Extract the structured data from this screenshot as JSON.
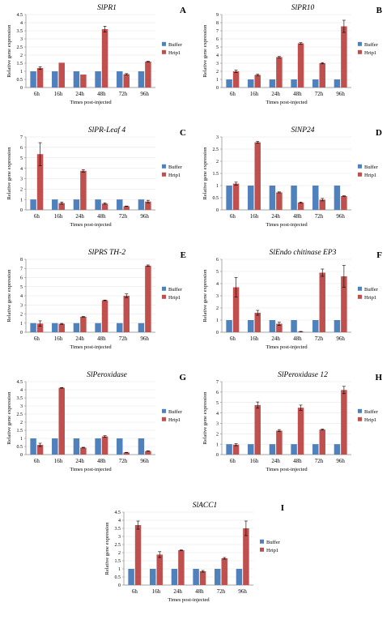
{
  "figure": {
    "colors": {
      "buffer": "#4F81BD",
      "hrip1": "#C0504D",
      "axis": "#868686",
      "grid": "#d9d9d9"
    }
  },
  "chart_data": [
    {
      "panel": "A",
      "title": "SlPR1",
      "type": "bar",
      "categories": [
        "6h",
        "16h",
        "24h",
        "48h",
        "72h",
        "96h"
      ],
      "series": [
        {
          "name": "Buffer",
          "values": [
            1,
            1,
            1,
            1,
            1,
            1
          ]
        },
        {
          "name": "Hrip1",
          "values": [
            1.2,
            1.53,
            0.8,
            3.6,
            0.82,
            1.6
          ],
          "errors": [
            0.08,
            0.0,
            0.0,
            0.18,
            0.04,
            0.02
          ]
        }
      ],
      "ylim": [
        0,
        4.5
      ],
      "yticks": [
        "0",
        "0.5",
        "1",
        "1.5",
        "2",
        "2.5",
        "3",
        "3.5",
        "4",
        "4.5"
      ],
      "ylabel": "Relative gene expression",
      "xlabel": "Times post-injected"
    },
    {
      "panel": "B",
      "title": "SlPR10",
      "type": "bar",
      "categories": [
        "6h",
        "16h",
        "24h",
        "48h",
        "72h",
        "96h"
      ],
      "series": [
        {
          "name": "Buffer",
          "values": [
            1,
            1,
            1,
            1,
            1,
            1
          ]
        },
        {
          "name": "Hrip1",
          "values": [
            2.0,
            1.55,
            3.75,
            5.45,
            3.0,
            7.55
          ],
          "errors": [
            0.15,
            0.1,
            0.08,
            0.08,
            0.08,
            0.75
          ]
        }
      ],
      "ylim": [
        0,
        9
      ],
      "yticks": [
        "0",
        "1",
        "2",
        "3",
        "4",
        "5",
        "6",
        "7",
        "8",
        "9"
      ],
      "ylabel": "Relative gene expression",
      "xlabel": "Times post-injected"
    },
    {
      "panel": "C",
      "title": "SlPR-Leaf 4",
      "type": "bar",
      "categories": [
        "6h",
        "16h",
        "24h",
        "48h",
        "72h",
        "96h"
      ],
      "series": [
        {
          "name": "Buffer",
          "values": [
            1,
            1,
            1,
            1,
            1,
            1
          ]
        },
        {
          "name": "Hrip1",
          "values": [
            5.35,
            0.65,
            3.75,
            0.6,
            0.35,
            0.8
          ],
          "errors": [
            1.1,
            0.1,
            0.12,
            0.06,
            0.02,
            0.12
          ]
        }
      ],
      "ylim": [
        0,
        7
      ],
      "yticks": [
        "0",
        "1",
        "2",
        "3",
        "4",
        "5",
        "6",
        "7"
      ],
      "ylabel": "Relative gene expression",
      "xlabel": "Times post-injected"
    },
    {
      "panel": "D",
      "title": "SlNP24",
      "type": "bar",
      "categories": [
        "6h",
        "16h",
        "24h",
        "48h",
        "72h",
        "96h"
      ],
      "series": [
        {
          "name": "Buffer",
          "values": [
            1,
            1,
            1,
            1,
            1,
            1
          ]
        },
        {
          "name": "Hrip1",
          "values": [
            1.08,
            2.78,
            0.72,
            0.3,
            0.42,
            0.57
          ],
          "errors": [
            0.06,
            0.04,
            0.02,
            0.02,
            0.05,
            0.01
          ]
        }
      ],
      "ylim": [
        0,
        3
      ],
      "yticks": [
        "0",
        "0.5",
        "1",
        "1.5",
        "2",
        "2.5",
        "3"
      ],
      "ylabel": "Relative gene expression",
      "xlabel": "Times post-injected"
    },
    {
      "panel": "E",
      "title": "SlPRS TH-2",
      "type": "bar",
      "categories": [
        "6h",
        "16h",
        "24h",
        "48h",
        "72h",
        "96h"
      ],
      "series": [
        {
          "name": "Buffer",
          "values": [
            1,
            1,
            1,
            1,
            1,
            1
          ]
        },
        {
          "name": "Hrip1",
          "values": [
            0.95,
            0.92,
            1.7,
            3.5,
            4.0,
            7.3
          ],
          "errors": [
            0.3,
            0.05,
            0.03,
            0.03,
            0.2,
            0.08
          ]
        }
      ],
      "ylim": [
        0,
        8
      ],
      "yticks": [
        "0",
        "1",
        "2",
        "3",
        "4",
        "5",
        "6",
        "7",
        "8"
      ],
      "ylabel": "Relative gene expression",
      "xlabel": "Times post-injected"
    },
    {
      "panel": "F",
      "title": "SlEndo chitinase EP3",
      "type": "bar",
      "categories": [
        "6h",
        "16h",
        "24h",
        "48h",
        "72h",
        "96h"
      ],
      "series": [
        {
          "name": "Buffer",
          "values": [
            1,
            1,
            1,
            1,
            1,
            1
          ]
        },
        {
          "name": "Hrip1",
          "values": [
            3.7,
            1.6,
            0.7,
            0.05,
            4.9,
            4.6
          ],
          "errors": [
            0.8,
            0.2,
            0.12,
            0.02,
            0.3,
            0.9
          ]
        }
      ],
      "ylim": [
        0,
        6
      ],
      "yticks": [
        "0",
        "1",
        "2",
        "3",
        "4",
        "5",
        "6"
      ],
      "ylabel": "Relative gene expression",
      "xlabel": "Times post-injected"
    },
    {
      "panel": "G",
      "title": "SlPeroxidase",
      "type": "bar",
      "categories": [
        "6h",
        "16h",
        "24h",
        "48h",
        "72h",
        "96h"
      ],
      "series": [
        {
          "name": "Buffer",
          "values": [
            1,
            1,
            1,
            1,
            1,
            1
          ]
        },
        {
          "name": "Hrip1",
          "values": [
            0.6,
            4.12,
            0.43,
            1.12,
            0.13,
            0.22
          ],
          "errors": [
            0.1,
            0.02,
            0.02,
            0.05,
            0.01,
            0.01
          ]
        }
      ],
      "ylim": [
        0,
        4.5
      ],
      "yticks": [
        "0",
        "0.5",
        "1",
        "1.5",
        "2",
        "2.5",
        "3",
        "3.5",
        "4",
        "4.5"
      ],
      "ylabel": "Relative gene expression",
      "xlabel": "Times post-injected"
    },
    {
      "panel": "H",
      "title": "SlPeroxidase 12",
      "type": "bar",
      "categories": [
        "6h",
        "16h",
        "24h",
        "48h",
        "72h",
        "96h"
      ],
      "series": [
        {
          "name": "Buffer",
          "values": [
            1,
            1,
            1,
            1,
            1,
            1
          ]
        },
        {
          "name": "Hrip1",
          "values": [
            0.95,
            4.75,
            2.3,
            4.5,
            2.4,
            6.2
          ],
          "errors": [
            0.1,
            0.3,
            0.1,
            0.25,
            0.05,
            0.35
          ]
        }
      ],
      "ylim": [
        0,
        7
      ],
      "yticks": [
        "0",
        "1",
        "2",
        "3",
        "4",
        "5",
        "6",
        "7"
      ],
      "ylabel": "Relative gene expression",
      "xlabel": "Times post-injected"
    },
    {
      "panel": "I",
      "title": "SlACC1",
      "type": "bar",
      "categories": [
        "6h",
        "16h",
        "24h",
        "48h",
        "72h",
        "96h"
      ],
      "series": [
        {
          "name": "Buffer",
          "values": [
            1,
            1,
            1,
            1,
            1,
            1
          ]
        },
        {
          "name": "Hrip1",
          "values": [
            3.7,
            1.88,
            2.15,
            0.85,
            1.65,
            3.5
          ],
          "errors": [
            0.25,
            0.18,
            0.02,
            0.05,
            0.05,
            0.45
          ]
        }
      ],
      "ylim": [
        0,
        4.5
      ],
      "yticks": [
        "0",
        "0.5",
        "1",
        "1.5",
        "2",
        "2.5",
        "3",
        "3.5",
        "4",
        "4.5"
      ],
      "ylabel": "Relative gene expression",
      "xlabel": "Times post-injected"
    }
  ]
}
